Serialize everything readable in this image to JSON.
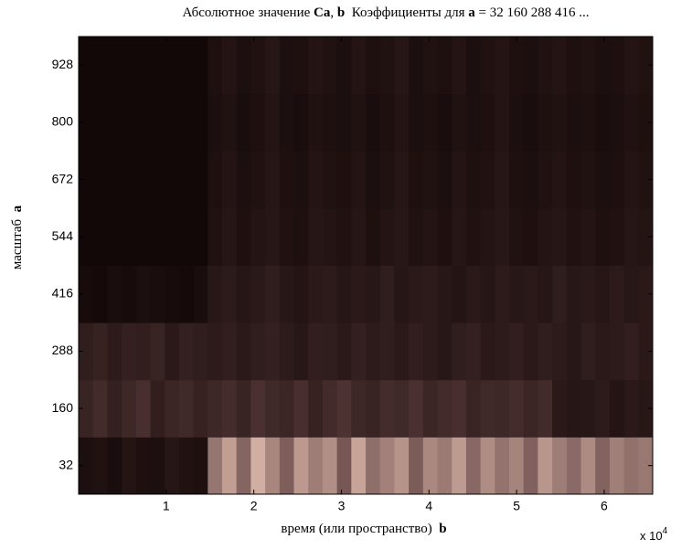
{
  "chart_data": {
    "type": "heatmap",
    "title_parts": [
      {
        "text": "Абсолютное значение ",
        "bold": false
      },
      {
        "text": "Ca",
        "bold": true
      },
      {
        "text": ", ",
        "bold": false
      },
      {
        "text": "b",
        "bold": true
      },
      {
        "text": "  Коэффициенты для ",
        "bold": false
      },
      {
        "text": "a",
        "bold": true
      },
      {
        "text": " = 32 160 288 416 ...",
        "bold": false
      }
    ],
    "x_label_parts": [
      {
        "text": "время (или пространство)  ",
        "bold": false
      },
      {
        "text": "b",
        "bold": true
      }
    ],
    "y_label_parts": [
      {
        "text": "масштаб  ",
        "bold": false
      },
      {
        "text": "a",
        "bold": true
      }
    ],
    "x_multiplier": {
      "base": "x 10",
      "exponent": "4"
    },
    "xlim": [
      0,
      6.5536
    ],
    "xticks": [
      1,
      2,
      3,
      4,
      5,
      6
    ],
    "ylim": [
      -32,
      992
    ],
    "yticks": [
      32,
      160,
      288,
      416,
      544,
      672,
      800,
      928
    ],
    "y": [
      32,
      160,
      288,
      416,
      544,
      672,
      800,
      928
    ],
    "clim": [
      0,
      100
    ],
    "colormap": [
      "#0e0404",
      "#4a3030",
      "#8a6a66",
      "#c8a498",
      "#f2dccc"
    ],
    "values": [
      [
        6,
        8,
        5,
        9,
        7,
        6,
        10,
        8,
        7,
        55,
        72,
        48,
        80,
        62,
        45,
        70,
        58,
        66,
        42,
        75,
        52,
        60,
        68,
        44,
        63,
        57,
        71,
        49,
        65,
        54,
        61,
        46,
        69,
        58,
        50,
        64,
        47,
        59,
        53,
        56
      ],
      [
        18,
        22,
        16,
        20,
        24,
        15,
        19,
        21,
        17,
        20,
        23,
        18,
        25,
        21,
        19,
        24,
        17,
        22,
        26,
        20,
        18,
        23,
        21,
        25,
        19,
        22,
        24,
        18,
        21,
        20,
        23,
        19,
        22,
        12,
        10,
        11,
        13,
        9,
        12,
        11
      ],
      [
        14,
        17,
        13,
        16,
        15,
        18,
        12,
        16,
        14,
        13,
        15,
        12,
        14,
        16,
        13,
        11,
        15,
        14,
        12,
        16,
        13,
        14,
        12,
        15,
        13,
        11,
        14,
        16,
        12,
        13,
        15,
        12,
        14,
        13,
        11,
        14,
        12,
        13,
        15,
        12
      ],
      [
        4,
        3,
        5,
        4,
        6,
        5,
        4,
        3,
        5,
        11,
        13,
        10,
        12,
        14,
        11,
        9,
        12,
        13,
        10,
        12,
        11,
        14,
        10,
        12,
        13,
        11,
        9,
        12,
        10,
        13,
        11,
        12,
        10,
        14,
        11,
        12,
        10,
        13,
        11,
        12
      ],
      [
        2,
        2,
        2,
        2,
        2,
        2,
        2,
        2,
        2,
        8,
        10,
        7,
        9,
        11,
        8,
        7,
        10,
        9,
        8,
        10,
        7,
        9,
        11,
        8,
        9,
        7,
        10,
        8,
        9,
        11,
        8,
        7,
        9,
        10,
        8,
        9,
        7,
        8,
        10,
        9
      ],
      [
        2,
        2,
        2,
        2,
        2,
        2,
        2,
        2,
        2,
        7,
        9,
        6,
        8,
        10,
        7,
        6,
        9,
        8,
        7,
        9,
        6,
        8,
        10,
        7,
        8,
        6,
        9,
        7,
        8,
        10,
        7,
        6,
        8,
        9,
        7,
        8,
        6,
        7,
        9,
        8
      ],
      [
        2,
        2,
        2,
        2,
        2,
        2,
        2,
        2,
        2,
        6,
        8,
        5,
        7,
        9,
        6,
        5,
        8,
        7,
        6,
        8,
        5,
        7,
        9,
        6,
        7,
        5,
        8,
        6,
        7,
        9,
        6,
        5,
        7,
        8,
        6,
        7,
        5,
        6,
        8,
        7
      ],
      [
        2,
        2,
        2,
        2,
        2,
        2,
        2,
        2,
        2,
        7,
        9,
        6,
        8,
        10,
        6,
        7,
        9,
        8,
        6,
        9,
        7,
        8,
        10,
        6,
        8,
        7,
        9,
        6,
        8,
        9,
        7,
        6,
        8,
        9,
        7,
        8,
        6,
        7,
        9,
        8
      ]
    ]
  }
}
